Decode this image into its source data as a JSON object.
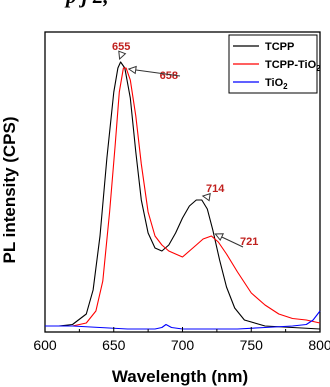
{
  "header_fragment": "p     j     2,",
  "chart_data": {
    "type": "line",
    "xlabel": "Wavelength (nm)",
    "ylabel": "PL intensity (CPS)",
    "xlim": [
      600,
      800
    ],
    "ylim": [
      0,
      1.0
    ],
    "x_ticks": [
      600,
      650,
      700,
      750,
      800
    ],
    "y_ticks_shown": false,
    "legend_position": "top-right",
    "series": [
      {
        "name": "TCPP",
        "color": "#000000",
        "points": [
          [
            600,
            0.02
          ],
          [
            610,
            0.02
          ],
          [
            620,
            0.025
          ],
          [
            630,
            0.06
          ],
          [
            635,
            0.14
          ],
          [
            640,
            0.32
          ],
          [
            645,
            0.58
          ],
          [
            650,
            0.8
          ],
          [
            653,
            0.88
          ],
          [
            655,
            0.9
          ],
          [
            658,
            0.88
          ],
          [
            662,
            0.78
          ],
          [
            666,
            0.6
          ],
          [
            670,
            0.44
          ],
          [
            675,
            0.33
          ],
          [
            680,
            0.28
          ],
          [
            685,
            0.27
          ],
          [
            690,
            0.29
          ],
          [
            695,
            0.33
          ],
          [
            700,
            0.38
          ],
          [
            705,
            0.42
          ],
          [
            710,
            0.44
          ],
          [
            714,
            0.44
          ],
          [
            718,
            0.41
          ],
          [
            722,
            0.34
          ],
          [
            727,
            0.24
          ],
          [
            732,
            0.15
          ],
          [
            738,
            0.08
          ],
          [
            745,
            0.04
          ],
          [
            760,
            0.02
          ],
          [
            780,
            0.015
          ],
          [
            800,
            0.01
          ]
        ]
      },
      {
        "name": "TCPP-TiO2",
        "color": "#ff0000",
        "points": [
          [
            600,
            0.02
          ],
          [
            620,
            0.02
          ],
          [
            630,
            0.03
          ],
          [
            637,
            0.07
          ],
          [
            642,
            0.17
          ],
          [
            647,
            0.4
          ],
          [
            651,
            0.62
          ],
          [
            654,
            0.8
          ],
          [
            657,
            0.88
          ],
          [
            659,
            0.88
          ],
          [
            662,
            0.84
          ],
          [
            666,
            0.72
          ],
          [
            670,
            0.56
          ],
          [
            675,
            0.4
          ],
          [
            680,
            0.32
          ],
          [
            685,
            0.29
          ],
          [
            690,
            0.27
          ],
          [
            695,
            0.26
          ],
          [
            700,
            0.25
          ],
          [
            705,
            0.27
          ],
          [
            710,
            0.29
          ],
          [
            715,
            0.31
          ],
          [
            721,
            0.32
          ],
          [
            726,
            0.3
          ],
          [
            732,
            0.26
          ],
          [
            740,
            0.2
          ],
          [
            750,
            0.13
          ],
          [
            760,
            0.09
          ],
          [
            770,
            0.06
          ],
          [
            780,
            0.045
          ],
          [
            790,
            0.04
          ],
          [
            800,
            0.03
          ]
        ]
      },
      {
        "name": "TiO2",
        "color": "#0000ff",
        "points": [
          [
            600,
            0.02
          ],
          [
            620,
            0.02
          ],
          [
            640,
            0.015
          ],
          [
            660,
            0.01
          ],
          [
            680,
            0.01
          ],
          [
            685,
            0.015
          ],
          [
            688,
            0.025
          ],
          [
            692,
            0.015
          ],
          [
            700,
            0.01
          ],
          [
            720,
            0.01
          ],
          [
            740,
            0.01
          ],
          [
            760,
            0.015
          ],
          [
            780,
            0.02
          ],
          [
            790,
            0.025
          ],
          [
            795,
            0.04
          ],
          [
            800,
            0.07
          ]
        ]
      }
    ],
    "annotations": [
      {
        "label": "655",
        "x": 655,
        "y": 0.9
      },
      {
        "label": "658",
        "x": 658,
        "y": 0.88
      },
      {
        "label": "714",
        "x": 714,
        "y": 0.44
      },
      {
        "label": "721",
        "x": 721,
        "y": 0.32
      }
    ],
    "legend": [
      {
        "label_main": "TCPP",
        "label_sub": ""
      },
      {
        "label_main": "TCPP-TiO",
        "label_sub": "2"
      },
      {
        "label_main": "TiO",
        "label_sub": "2"
      }
    ]
  }
}
